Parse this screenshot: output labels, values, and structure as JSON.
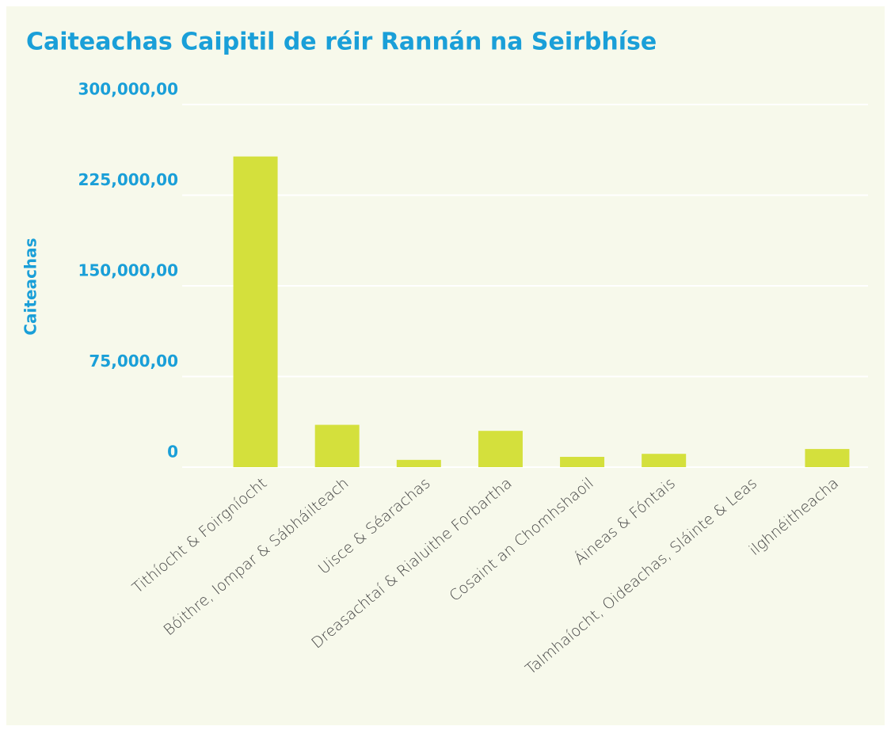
{
  "chart_data": {
    "type": "bar",
    "title": "Caiteachas Caipitil de réir Rannán na Seirbhíse",
    "y_label": "Caiteachas",
    "categories": [
      "Tithíocht & Foirgníocht",
      "Bóithre, Iompar & Sábháilteach",
      "Uisce & Séarachas",
      "Dreasachtaí & Rialuithe Forbartha",
      "Cosaint an Chomhshaoil",
      "Áineas & Fóntais",
      "Talmhaíocht, Oideachas, Sláinte & Leas",
      "ilghnéitheacha"
    ],
    "values": [
      257000,
      35000,
      6000,
      30000,
      8500,
      11000,
      0,
      15000
    ],
    "color": "#d4e03c",
    "ylim": [
      0,
      300000
    ],
    "yticks": [
      0,
      {
        "value": 75000,
        "label": "75,000,00"
      },
      {
        "value": 150000,
        "label": "150,000,00"
      },
      {
        "value": 225000,
        "label": "225,000,00"
      },
      {
        "value": 300000,
        "label": "300,000,00"
      }
    ],
    "grid": true
  }
}
